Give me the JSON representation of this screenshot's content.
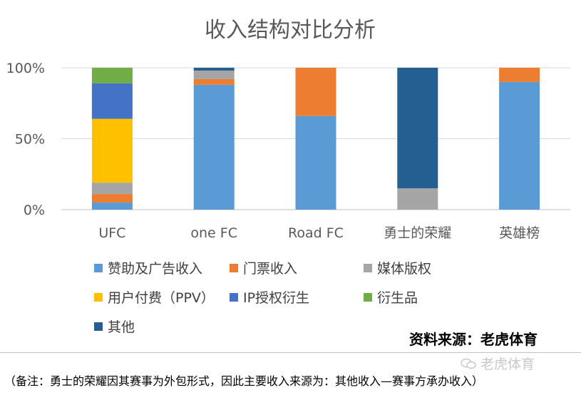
{
  "chart_data": {
    "type": "bar",
    "stacked": "percent",
    "title": "收入结构对比分析",
    "ylim": [
      0,
      100
    ],
    "yticks": [
      "0%",
      "50%",
      "100%"
    ],
    "grid": true,
    "categories": [
      "UFC",
      "one FC",
      "Road FC",
      "勇士的荣耀",
      "英雄榜"
    ],
    "series": [
      {
        "name": "赞助及广告收入",
        "color": "#5b9bd5",
        "values": [
          5,
          88,
          66,
          0,
          90
        ]
      },
      {
        "name": "门票收入",
        "color": "#ed7d31",
        "values": [
          6,
          4,
          34,
          0,
          10
        ]
      },
      {
        "name": "媒体版权",
        "color": "#a5a5a5",
        "values": [
          8,
          6,
          0,
          15,
          0
        ]
      },
      {
        "name": "用户付费（PPV）",
        "color": "#ffc000",
        "values": [
          45,
          0,
          0,
          0,
          0
        ]
      },
      {
        "name": "IP授权衍生",
        "color": "#4472c4",
        "values": [
          25,
          0,
          0,
          0,
          0
        ]
      },
      {
        "name": "衍生品",
        "color": "#70ad47",
        "values": [
          11,
          0,
          0,
          0,
          0
        ]
      },
      {
        "name": "其他",
        "color": "#255e91",
        "values": [
          0,
          2,
          0,
          85,
          0
        ]
      }
    ],
    "legend_position": "bottom"
  },
  "source": "资料来源：老虎体育",
  "watermark": "老虎体育",
  "note": "（备注：勇士的荣耀因其赛事为外包形式，因此主要收入来源为：其他收入—赛事方承办收入）"
}
